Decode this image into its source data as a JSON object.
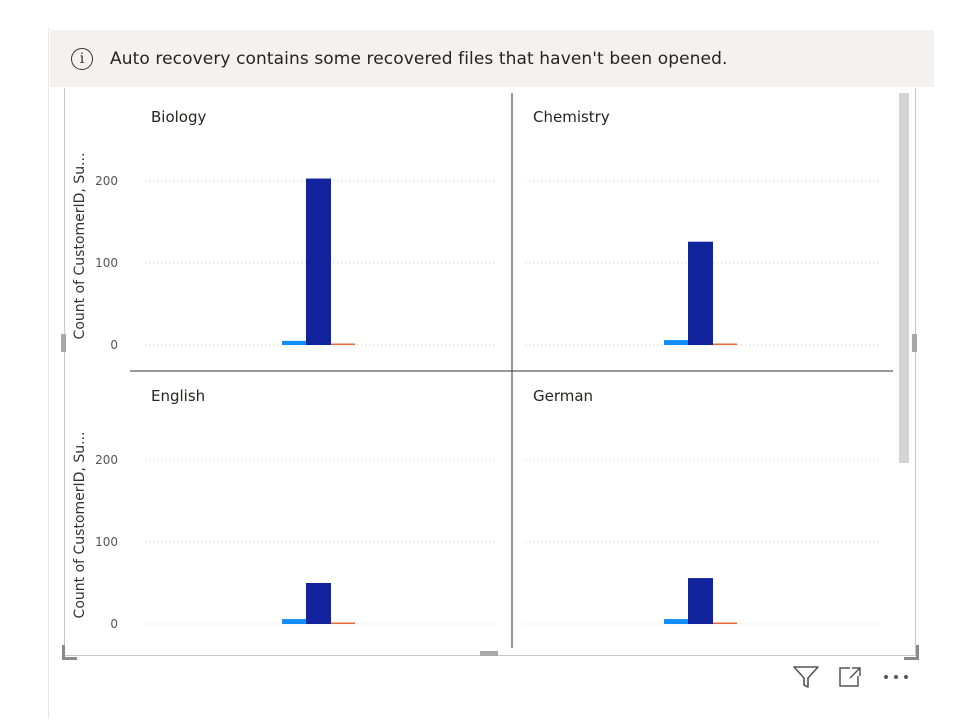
{
  "banner": {
    "icon": "info-icon",
    "message": "Auto recovery contains some recovered files that haven't been opened."
  },
  "chart_data": {
    "type": "bar",
    "layout": "small-multiples",
    "ylabel": "Count of CustomerID, Su...",
    "ylim": [
      0,
      250
    ],
    "yticks": [
      0,
      100,
      200
    ],
    "grid": true,
    "series_colors": [
      "#118DFF",
      "#12239E",
      "#E66C37"
    ],
    "panels": [
      {
        "title": "Biology",
        "values": [
          5,
          203,
          1
        ]
      },
      {
        "title": "Chemistry",
        "values": [
          6,
          126,
          1
        ]
      },
      {
        "title": "English",
        "values": [
          6,
          50,
          1
        ]
      },
      {
        "title": "German",
        "values": [
          6,
          56,
          1
        ]
      }
    ]
  },
  "footer": {
    "icons": [
      "filter-icon",
      "focus-mode-icon",
      "more-options-icon"
    ]
  }
}
